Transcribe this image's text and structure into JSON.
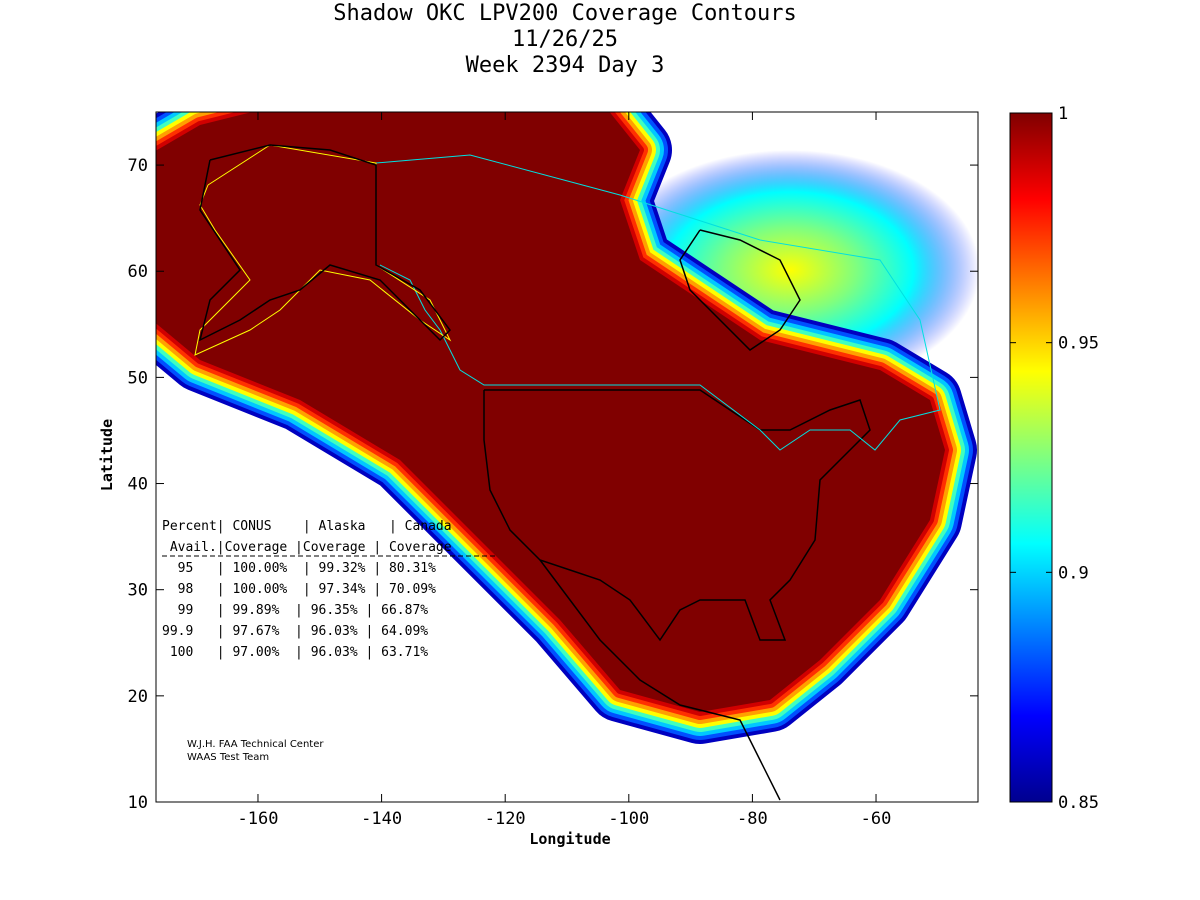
{
  "chart_data": {
    "type": "heatmap",
    "title": [
      "Shadow OKC LPV200 Coverage Contours",
      "11/26/25",
      "Week 2394 Day 3"
    ],
    "xlabel": "Longitude",
    "ylabel": "Latitude",
    "xticks": [
      -160,
      -140,
      -120,
      -100,
      -80,
      -60
    ],
    "yticks": [
      10,
      20,
      30,
      40,
      50,
      60,
      70
    ],
    "xlim": [
      -176.5,
      -43.5
    ],
    "ylim": [
      10,
      75
    ],
    "colorbar": {
      "min": 0.85,
      "max": 1,
      "ticks": [
        "1",
        "0.95",
        "0.9",
        "0.85"
      ],
      "colormap": "jet"
    },
    "table": {
      "header1": "Percent| CONUS    | Alaska   | Canada",
      "header2": " Avail.|Coverage |Coverage | Coverage",
      "rows": [
        "  95   | 100.00%  | 99.32% | 80.31%",
        "  98   | 100.00%  | 97.34% | 70.09%",
        "  99   | 99.89%  | 96.35% | 66.87%",
        "99.9   | 97.67%  | 96.03% | 64.09%",
        " 100   | 97.00%  | 96.03% | 63.71%"
      ],
      "stats": [
        {
          "percent": 95,
          "conus": 100.0,
          "alaska": 99.32,
          "canada": 80.31
        },
        {
          "percent": 98,
          "conus": 100.0,
          "alaska": 97.34,
          "canada": 70.09
        },
        {
          "percent": 99,
          "conus": 99.89,
          "alaska": 96.35,
          "canada": 66.87
        },
        {
          "percent": 99.9,
          "conus": 97.67,
          "alaska": 96.03,
          "canada": 64.09
        },
        {
          "percent": 100,
          "conus": 97.0,
          "alaska": 96.03,
          "canada": 63.71
        }
      ]
    },
    "credit": [
      "W.J.H. FAA Technical Center",
      "WAAS Test Team"
    ]
  }
}
